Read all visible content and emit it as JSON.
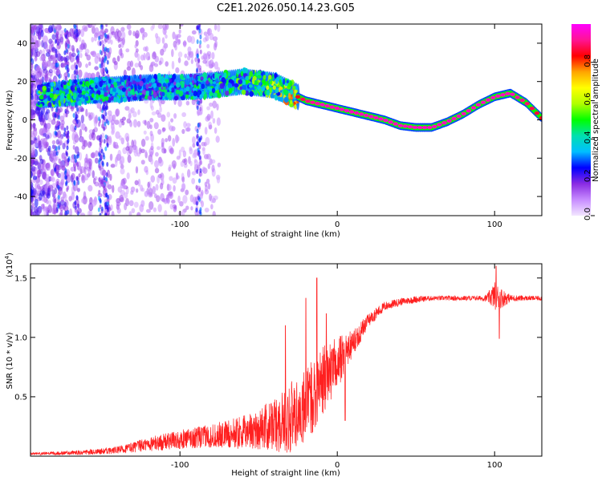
{
  "title": "C2E1.2026.050.14.23.G05",
  "chart_data": [
    {
      "type": "heatmap",
      "panel": "spectrogram",
      "xlabel": "Height of straight line (km)",
      "ylabel": "Frequency (Hz)",
      "xlim": [
        -195,
        130
      ],
      "ylim": [
        -50,
        50
      ],
      "xticks": [
        -100,
        0,
        100
      ],
      "yticks": [
        -40,
        -20,
        0,
        20,
        40
      ],
      "colorbar": {
        "label": "Normalized spectral amplitude",
        "range": [
          0,
          1
        ],
        "ticks": [
          0.0,
          0.2,
          0.4,
          0.6,
          0.8
        ],
        "colors": [
          "#f2e6ff",
          "#c78cff",
          "#8a2be2",
          "#0000ff",
          "#00bfff",
          "#00e0b0",
          "#00ff00",
          "#b0ff00",
          "#ffff00",
          "#ffa500",
          "#ff0000",
          "#ff1493",
          "#ff00ff"
        ]
      },
      "ridge": {
        "x": [
          -180,
          -160,
          -140,
          -120,
          -100,
          -80,
          -60,
          -40,
          -30,
          -20,
          -10,
          0,
          10,
          20,
          30,
          40,
          50,
          60,
          70,
          80,
          90,
          100,
          110,
          120,
          130
        ],
        "y": [
          13,
          15,
          16,
          17,
          17,
          18,
          20,
          18,
          14,
          10,
          8,
          6,
          4,
          2,
          0,
          -3,
          -4,
          -4,
          -1,
          3,
          8,
          12,
          14,
          9,
          1
        ],
        "amplitude": [
          0.55,
          0.5,
          0.45,
          0.45,
          0.45,
          0.5,
          0.55,
          0.65,
          0.8,
          0.9,
          0.95,
          0.95,
          0.95,
          0.95,
          0.95,
          0.95,
          0.95,
          0.95,
          0.95,
          0.95,
          0.95,
          0.95,
          0.95,
          0.9,
          0.85
        ]
      }
    },
    {
      "type": "line",
      "panel": "snr",
      "xlabel": "Height of straight line (km)",
      "ylabel": "SNR (10 * v/v)",
      "y_multiplier": "(x10",
      "y_multiplier_exp": "4",
      "y_multiplier_close": ")",
      "xlim": [
        -195,
        130
      ],
      "ylim": [
        0,
        1.62
      ],
      "xticks": [
        -100,
        0,
        100
      ],
      "yticks": [
        0.5,
        1.0,
        1.5
      ],
      "yticklabels": [
        "0.5",
        "1.0",
        "1.5"
      ],
      "color": "#ff2020",
      "trend": {
        "x": [
          -195,
          -160,
          -140,
          -120,
          -100,
          -80,
          -60,
          -40,
          -30,
          -20,
          -10,
          0,
          10,
          20,
          30,
          40,
          50,
          60,
          70,
          80,
          90,
          95,
          100,
          105,
          110,
          120,
          130
        ],
        "y": [
          0.02,
          0.03,
          0.05,
          0.1,
          0.14,
          0.17,
          0.2,
          0.26,
          0.32,
          0.42,
          0.62,
          0.78,
          0.95,
          1.15,
          1.26,
          1.3,
          1.32,
          1.33,
          1.33,
          1.33,
          1.33,
          1.33,
          1.35,
          1.33,
          1.33,
          1.33,
          1.33
        ]
      },
      "noise": {
        "x": [
          -195,
          -160,
          -140,
          -120,
          -100,
          -80,
          -60,
          -40,
          -30,
          -20,
          -10,
          0,
          10,
          20,
          30,
          40,
          50,
          60,
          70,
          80,
          90,
          95,
          100,
          105,
          110,
          120,
          130
        ],
        "y": [
          0.01,
          0.02,
          0.03,
          0.06,
          0.08,
          0.1,
          0.14,
          0.22,
          0.3,
          0.32,
          0.3,
          0.22,
          0.12,
          0.06,
          0.04,
          0.03,
          0.03,
          0.02,
          0.02,
          0.02,
          0.02,
          0.03,
          0.12,
          0.08,
          0.03,
          0.02,
          0.02
        ]
      },
      "spikes": [
        {
          "x": -13,
          "y": 1.5
        },
        {
          "x": -20,
          "y": 1.33
        },
        {
          "x": -33,
          "y": 1.1
        },
        {
          "x": -7,
          "y": 1.2
        },
        {
          "x": 5,
          "y": 0.3
        },
        {
          "x": 101,
          "y": 1.6
        },
        {
          "x": 103,
          "y": 0.99
        }
      ]
    }
  ]
}
